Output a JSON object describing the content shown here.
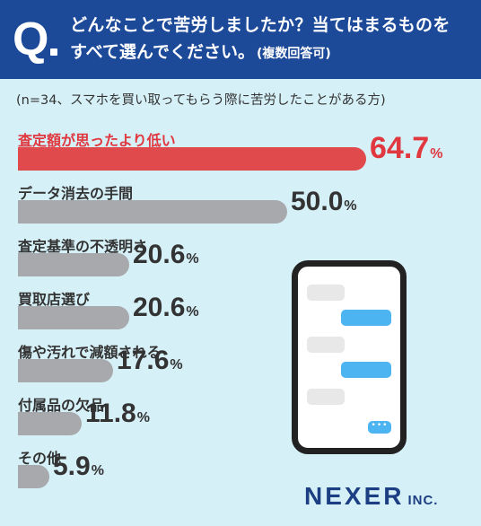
{
  "header": {
    "q_letter": "Q",
    "question_line1": "どんなことで苦労しましたか？当てはまるものを",
    "question_line2": "すべて選んでください。",
    "question_sub": "(複数回答可)"
  },
  "note": "(n=34、スマホを買い取ってもらう際に苦労したことがある方)",
  "colors": {
    "header_bg": "#1c4a99",
    "highlight": "#e14a4d",
    "bar_gray": "#a7a9ad",
    "background": "#d6f0f8"
  },
  "chart_data": {
    "type": "bar",
    "orientation": "horizontal",
    "unit": "%",
    "categories": [
      "査定額が思ったより低い",
      "データ消去の手間",
      "査定基準の不透明さ",
      "買取店選び",
      "傷や汚れで減額される",
      "付属品の欠品",
      "その他"
    ],
    "values": [
      64.7,
      50.0,
      20.6,
      20.6,
      17.6,
      11.8,
      5.9
    ],
    "value_labels": [
      "64.7",
      "50.0",
      "20.6",
      "20.6",
      "17.6",
      "11.8",
      "5.9"
    ],
    "highlight_index": 0,
    "xlim": [
      0,
      100
    ]
  },
  "phone_icon": "smartphone-chat-icon",
  "logo": {
    "main": "NEXER",
    "suffix": "INC."
  }
}
